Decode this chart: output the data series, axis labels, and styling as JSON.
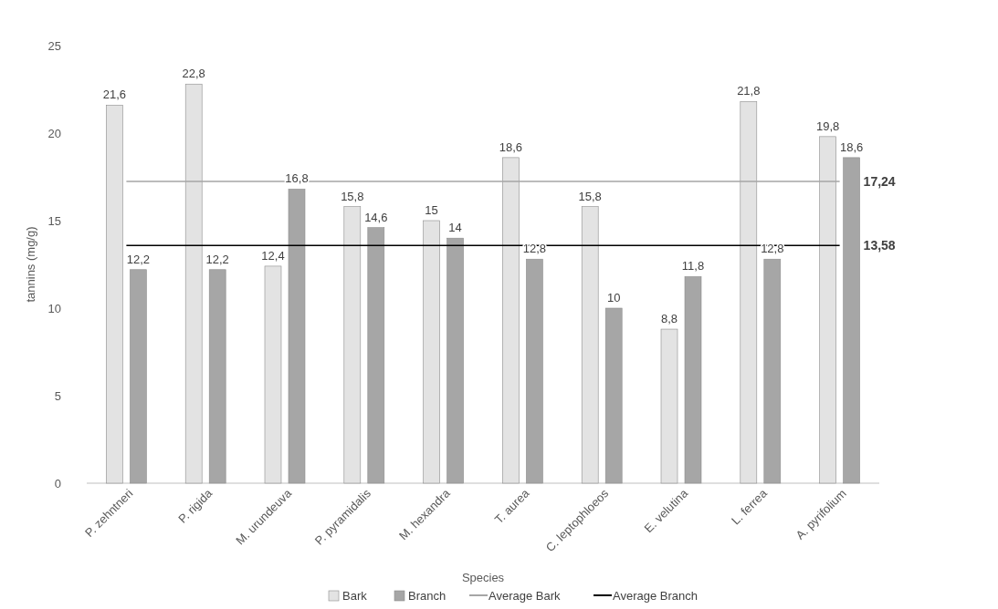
{
  "chart_data": {
    "type": "bar",
    "xlabel": "Species",
    "ylabel": "tannins (mg/g)",
    "categories": [
      "P. zehntneri",
      "P. rigida",
      "M. urundeuva",
      "P. pyramidalis",
      "M. hexandra",
      "T. aurea",
      "C. leptophloeos",
      "E. velutina",
      "L. ferrea",
      "A. pyrifolium"
    ],
    "series": [
      {
        "name": "Bark",
        "color": "#e3e3e3",
        "values": [
          21.6,
          22.8,
          12.4,
          15.8,
          15,
          18.6,
          15.8,
          8.8,
          21.8,
          19.8
        ],
        "value_labels": [
          "21,6",
          "22,8",
          "12,4",
          "15,8",
          "15",
          "18,6",
          "15,8",
          "8,8",
          "21,8",
          "19,8"
        ]
      },
      {
        "name": "Branch",
        "color": "#a6a6a6",
        "values": [
          12.2,
          12.2,
          16.8,
          14.6,
          14,
          12.8,
          10,
          11.8,
          12.8,
          18.6
        ],
        "value_labels": [
          "12,2",
          "12,2",
          "16,8",
          "14,6",
          "14",
          "12,8",
          "10",
          "11,8",
          "12,8",
          "18,6"
        ]
      },
      {
        "name": "Average Bark",
        "type": "line",
        "color": "#a6a6a6",
        "values": [
          17.24,
          17.24,
          17.24,
          17.24,
          17.24,
          17.24,
          17.24,
          17.24,
          17.24,
          17.24
        ],
        "value_labels": [
          null,
          null,
          null,
          null,
          null,
          null,
          null,
          null,
          null,
          "17,24"
        ]
      },
      {
        "name": "Average Branch",
        "type": "line",
        "color": "#000000",
        "values": [
          13.58,
          13.58,
          13.58,
          13.58,
          13.58,
          13.58,
          13.58,
          13.58,
          13.58,
          13.58
        ],
        "value_labels": [
          null,
          null,
          null,
          null,
          null,
          null,
          null,
          null,
          null,
          "13,58"
        ]
      }
    ],
    "ylim": [
      0,
      25
    ],
    "yticks": [
      0,
      5,
      10,
      15,
      20,
      25
    ],
    "legend": "bottom"
  }
}
